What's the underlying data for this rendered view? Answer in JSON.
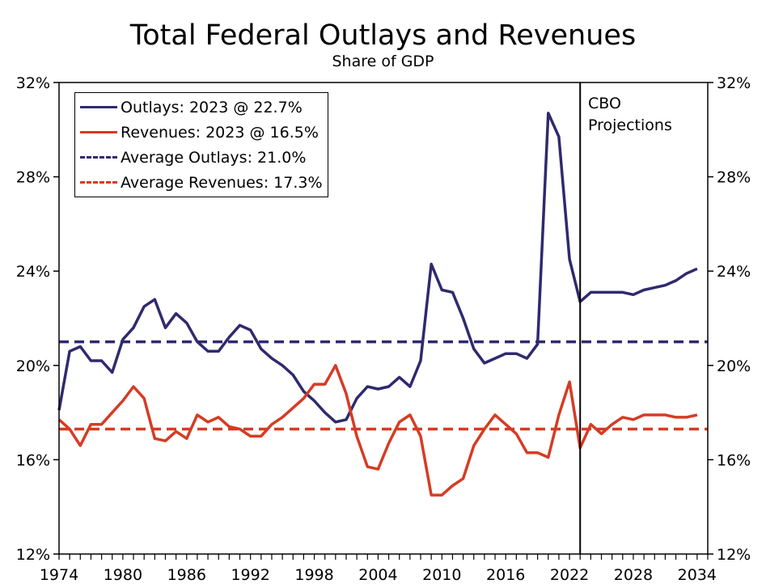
{
  "chart_data": {
    "type": "line",
    "title": "Total Federal Outlays and Revenues",
    "subtitle": "Share of GDP",
    "xlim": [
      1974,
      2035
    ],
    "ylim": [
      12,
      32
    ],
    "x_ticks": [
      1974,
      1980,
      1986,
      1992,
      1998,
      2004,
      2010,
      2016,
      2022,
      2028,
      2034
    ],
    "y_ticks": [
      12,
      16,
      20,
      24,
      28,
      32
    ],
    "y_tick_labels": [
      "12%",
      "16%",
      "20%",
      "24%",
      "28%",
      "32%"
    ],
    "secondary_y_axis": true,
    "grid": false,
    "legend_position": "top-left",
    "annotation": {
      "x": 2023,
      "lines": [
        "CBO",
        "Projections"
      ]
    },
    "x": [
      1974,
      1975,
      1976,
      1977,
      1978,
      1979,
      1980,
      1981,
      1982,
      1983,
      1984,
      1985,
      1986,
      1987,
      1988,
      1989,
      1990,
      1991,
      1992,
      1993,
      1994,
      1995,
      1996,
      1997,
      1998,
      1999,
      2000,
      2001,
      2002,
      2003,
      2004,
      2005,
      2006,
      2007,
      2008,
      2009,
      2010,
      2011,
      2012,
      2013,
      2014,
      2015,
      2016,
      2017,
      2018,
      2019,
      2020,
      2021,
      2022,
      2023,
      2024,
      2025,
      2026,
      2027,
      2028,
      2029,
      2030,
      2031,
      2032,
      2033,
      2034
    ],
    "series": [
      {
        "name": "Outlays: 2023 @ 22.7%",
        "color": "#2f2a6e",
        "style": "solid",
        "values": [
          18.1,
          20.6,
          20.8,
          20.2,
          20.2,
          19.7,
          21.1,
          21.6,
          22.5,
          22.8,
          21.6,
          22.2,
          21.8,
          21.0,
          20.6,
          20.6,
          21.2,
          21.7,
          21.5,
          20.7,
          20.3,
          20.0,
          19.6,
          18.9,
          18.5,
          18.0,
          17.6,
          17.7,
          18.6,
          19.1,
          19.0,
          19.1,
          19.5,
          19.1,
          20.2,
          24.3,
          23.2,
          23.1,
          22.0,
          20.7,
          20.1,
          20.3,
          20.5,
          20.5,
          20.3,
          20.9,
          30.7,
          29.7,
          24.5,
          22.7,
          23.1,
          23.1,
          23.1,
          23.1,
          23.0,
          23.2,
          23.3,
          23.4,
          23.6,
          23.9,
          24.1
        ]
      },
      {
        "name": "Revenues: 2023 @ 16.5%",
        "color": "#d63b24",
        "style": "solid",
        "values": [
          17.7,
          17.3,
          16.6,
          17.5,
          17.5,
          18.0,
          18.5,
          19.1,
          18.6,
          16.9,
          16.8,
          17.2,
          16.9,
          17.9,
          17.6,
          17.8,
          17.4,
          17.3,
          17.0,
          17.0,
          17.5,
          17.8,
          18.2,
          18.6,
          19.2,
          19.2,
          20.0,
          18.8,
          17.0,
          15.7,
          15.6,
          16.7,
          17.6,
          17.9,
          17.0,
          14.5,
          14.5,
          14.9,
          15.2,
          16.6,
          17.3,
          17.9,
          17.5,
          17.1,
          16.3,
          16.3,
          16.1,
          17.9,
          19.3,
          16.5,
          17.5,
          17.1,
          17.5,
          17.8,
          17.7,
          17.9,
          17.9,
          17.9,
          17.8,
          17.8,
          17.9
        ]
      },
      {
        "name": "Average Outlays: 21.0%",
        "color": "#2f2a6e",
        "style": "dashed",
        "constant": 21.0
      },
      {
        "name": "Average Revenues: 17.3%",
        "color": "#d63b24",
        "style": "dashed",
        "constant": 17.3
      }
    ]
  }
}
